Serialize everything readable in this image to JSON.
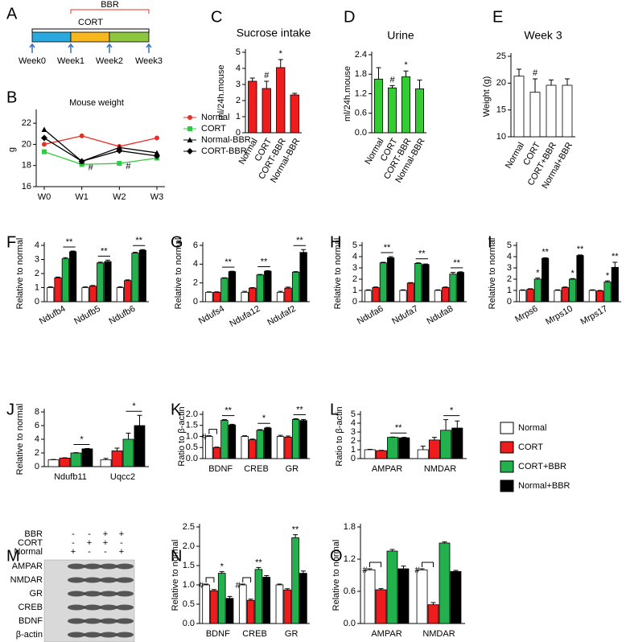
{
  "chart_data": [
    {
      "type": "timeline",
      "panel": "A",
      "weeks": [
        "Week0",
        "Week1",
        "Week2",
        "Week3"
      ],
      "segment_colors": [
        "#29a9e0",
        "#f7b81f",
        "#8dc63f"
      ],
      "brackets": [
        {
          "label": "BBR",
          "color": "#e8302a"
        },
        {
          "label": "CORT",
          "color": "#000000"
        }
      ]
    },
    {
      "type": "line",
      "panel": "B",
      "title": "Mouse weight",
      "ylabel": "g",
      "categories": [
        "W0",
        "W1",
        "W2",
        "W3"
      ],
      "ylim": [
        16,
        23
      ],
      "yticks": [
        16,
        18,
        20,
        22
      ],
      "series": [
        {
          "name": "Normal",
          "color": "#e8302a",
          "values": [
            20.0,
            20.8,
            19.8,
            20.6
          ]
        },
        {
          "name": "CORT",
          "color": "#2ecc40",
          "values": [
            19.3,
            18.1,
            18.2,
            18.7
          ],
          "sig": [
            null,
            "#",
            "#",
            null
          ]
        },
        {
          "name": "Normal-BBR",
          "color": "#000000",
          "values": [
            21.4,
            18.4,
            19.7,
            19.2
          ]
        },
        {
          "name": "CORT-BBR",
          "color": "#000000",
          "values": [
            20.6,
            18.4,
            19.4,
            18.9
          ]
        }
      ]
    },
    {
      "type": "bar",
      "panel": "C",
      "title": "Sucrose intake",
      "ylabel": "ml/24h.mouse",
      "categories": [
        "Normal",
        "CORT",
        "CORT-BBR",
        "Normal-BBR"
      ],
      "values": [
        3.2,
        2.75,
        4.05,
        2.35
      ],
      "errors": [
        0.2,
        0.45,
        0.5,
        0.1
      ],
      "sig": [
        null,
        "#",
        "*",
        null
      ],
      "color": "#ee1c1c",
      "ylim": [
        0,
        5
      ],
      "yticks": [
        0,
        1,
        2,
        3,
        4,
        5
      ]
    },
    {
      "type": "bar",
      "panel": "D",
      "title": "Urine",
      "ylabel": "ml/24h.mouse",
      "categories": [
        "Normal",
        "CORT",
        "CORT-BBR",
        "Normal-BBR"
      ],
      "values": [
        1.65,
        1.38,
        1.72,
        1.35
      ],
      "errors": [
        0.35,
        0.07,
        0.18,
        0.27
      ],
      "sig": [
        null,
        "#",
        "*",
        null
      ],
      "color": "#33cc33",
      "ylim": [
        0,
        2.4
      ],
      "yticks": [
        {
          "value": 0,
          "label": "0.0"
        },
        0.6,
        1.2,
        1.8,
        2.4
      ]
    },
    {
      "type": "bar",
      "panel": "E",
      "title": "Week 3",
      "ylabel": "Weight (g)",
      "categories": [
        "Normal",
        "CORT",
        "CORT+BBR",
        "Normal+BBR"
      ],
      "values": [
        21.3,
        18.3,
        19.6,
        19.6
      ],
      "errors": [
        1.3,
        2.5,
        1.0,
        1.2
      ],
      "sig": [
        null,
        "#",
        null,
        null
      ],
      "color": "#ffffff",
      "ylim": [
        10,
        25
      ],
      "yticks": [
        10,
        15,
        20,
        25
      ]
    },
    {
      "type": "bar",
      "panel": "F",
      "ylabel": "Relative to normal",
      "categories": [
        "Ndufb4",
        "Ndufb5",
        "Ndufb6"
      ],
      "ylim": [
        0,
        4
      ],
      "yticks": [
        0,
        1,
        2,
        3,
        4
      ],
      "group_sig": [
        "**",
        "**",
        "**"
      ],
      "sig_line": true,
      "series": [
        {
          "name": "Normal",
          "color": "#ffffff",
          "values": [
            1,
            1,
            1
          ],
          "errors": [
            0.05,
            0.05,
            0.05
          ]
        },
        {
          "name": "CORT",
          "color": "#ee1c1c",
          "values": [
            1.7,
            1.1,
            1.5
          ],
          "errors": [
            0.05,
            0.05,
            0.05
          ]
        },
        {
          "name": "CORT+BBR",
          "color": "#22b14c",
          "values": [
            3.05,
            2.75,
            3.45
          ],
          "errors": [
            0.08,
            0.06,
            0.06
          ]
        },
        {
          "name": "Normal+BBR",
          "color": "#000000",
          "values": [
            3.55,
            2.85,
            3.65
          ],
          "errors": [
            0.05,
            0.1,
            0.05
          ]
        }
      ]
    },
    {
      "type": "bar",
      "panel": "G",
      "ylabel": "Relative to normal",
      "categories": [
        "Ndufs4",
        "Ndufa12",
        "Ndufaf2"
      ],
      "ylim": [
        0,
        6
      ],
      "yticks": [
        0,
        2,
        4,
        6
      ],
      "group_sig": [
        "**",
        "**",
        "**"
      ],
      "sig_line": true,
      "series": [
        {
          "name": "Normal",
          "color": "#ffffff",
          "values": [
            1,
            1,
            1
          ],
          "errors": [
            0.05,
            0.1,
            0.1
          ]
        },
        {
          "name": "CORT",
          "color": "#ee1c1c",
          "values": [
            1.0,
            1.45,
            1.45
          ],
          "errors": [
            0.05,
            0.05,
            0.1
          ]
        },
        {
          "name": "CORT+BBR",
          "color": "#22b14c",
          "values": [
            2.5,
            2.85,
            3.15
          ],
          "errors": [
            0.05,
            0.05,
            0.05
          ]
        },
        {
          "name": "Normal+BBR",
          "color": "#000000",
          "values": [
            3.2,
            3.25,
            5.25
          ],
          "errors": [
            0.05,
            0.05,
            0.3
          ]
        }
      ]
    },
    {
      "type": "bar",
      "panel": "H",
      "ylabel": "Relative to normal",
      "categories": [
        "Ndufa6",
        "Ndufa7",
        "Ndufa8"
      ],
      "ylim": [
        0,
        5
      ],
      "yticks": [
        0,
        1,
        2,
        3,
        4,
        5
      ],
      "group_sig": [
        "**",
        "**",
        "**"
      ],
      "sig_line": true,
      "series": [
        {
          "name": "Normal",
          "color": "#ffffff",
          "values": [
            1,
            1,
            1
          ],
          "errors": [
            0.05,
            0.05,
            0.05
          ]
        },
        {
          "name": "CORT",
          "color": "#ee1c1c",
          "values": [
            1.25,
            1.65,
            1.25
          ],
          "errors": [
            0.05,
            0.05,
            0.05
          ]
        },
        {
          "name": "CORT+BBR",
          "color": "#22b14c",
          "values": [
            3.45,
            3.4,
            2.45
          ],
          "errors": [
            0.05,
            0.05,
            0.15
          ]
        },
        {
          "name": "Normal+BBR",
          "color": "#000000",
          "values": [
            3.9,
            3.3,
            2.6
          ],
          "errors": [
            0.1,
            0.05,
            0.05
          ]
        }
      ]
    },
    {
      "type": "bar",
      "panel": "I",
      "ylabel": "Relative to normal",
      "categories": [
        "Mrps6",
        "Mrps10",
        "Mrps17"
      ],
      "ylim": [
        0,
        5
      ],
      "yticks": [
        0,
        1,
        2,
        3,
        4,
        5
      ],
      "group_sig": [
        "**",
        "**",
        "**"
      ],
      "sig_line": false,
      "series": [
        {
          "name": "Normal",
          "color": "#ffffff",
          "values": [
            1,
            1,
            1
          ],
          "errors": [
            0.05,
            0.05,
            0.05
          ]
        },
        {
          "name": "CORT",
          "color": "#ee1c1c",
          "values": [
            1.1,
            1.25,
            0.95
          ],
          "errors": [
            0.05,
            0.05,
            0.05
          ]
        },
        {
          "name": "CORT+BBR",
          "color": "#22b14c",
          "values": [
            2.0,
            2.0,
            1.75
          ],
          "errors": [
            0.1,
            0.05,
            0.1
          ],
          "sig": [
            "*",
            "*",
            "*"
          ]
        },
        {
          "name": "Normal+BBR",
          "color": "#000000",
          "values": [
            3.85,
            4.1,
            3.05
          ],
          "errors": [
            0.05,
            0.05,
            0.45
          ]
        }
      ]
    },
    {
      "type": "bar",
      "panel": "J",
      "ylabel": "Relative to normal",
      "categories": [
        "Ndufb11",
        "Uqcc2"
      ],
      "ylim": [
        0,
        8
      ],
      "yticks": [
        0,
        2,
        4,
        6,
        8
      ],
      "group_sig": [
        "*",
        "*"
      ],
      "sig_line": true,
      "series": [
        {
          "name": "Normal",
          "color": "#ffffff",
          "values": [
            1,
            1
          ],
          "errors": [
            0.05,
            0.2
          ]
        },
        {
          "name": "CORT",
          "color": "#ee1c1c",
          "values": [
            1.25,
            2.3
          ],
          "errors": [
            0.05,
            0.4
          ]
        },
        {
          "name": "CORT+BBR",
          "color": "#22b14c",
          "values": [
            2.0,
            4.0
          ],
          "errors": [
            0.05,
            0.9
          ]
        },
        {
          "name": "Normal+BBR",
          "color": "#000000",
          "values": [
            2.6,
            6.0
          ],
          "errors": [
            0.05,
            1.5
          ]
        }
      ]
    },
    {
      "type": "bar",
      "panel": "K",
      "ylabel": "Ratio to β-actin",
      "categories": [
        "BDNF",
        "CREB",
        "GR"
      ],
      "ylim": [
        0,
        2
      ],
      "yticks": [
        {
          "value": 0,
          "label": "0.0"
        },
        0.5,
        {
          "value": 1,
          "label": "1.0"
        },
        1.5,
        {
          "value": 2,
          "label": "2.0"
        }
      ],
      "group_sig": [
        "**",
        "*",
        "**"
      ],
      "pair_sig": [
        "#",
        null,
        null
      ],
      "sig_line": true,
      "series": [
        {
          "name": "Normal",
          "color": "#ffffff",
          "values": [
            1,
            1,
            1
          ],
          "errors": [
            0.03,
            0.03,
            0.05
          ]
        },
        {
          "name": "CORT",
          "color": "#ee1c1c",
          "values": [
            0.5,
            0.85,
            0.97
          ],
          "errors": [
            0.02,
            0.03,
            0.05
          ]
        },
        {
          "name": "CORT+BBR",
          "color": "#22b14c",
          "values": [
            1.73,
            1.28,
            1.77
          ],
          "errors": [
            0.03,
            0.03,
            0.03
          ]
        },
        {
          "name": "Normal+BBR",
          "color": "#000000",
          "values": [
            1.52,
            1.38,
            1.72
          ],
          "errors": [
            0.03,
            0.03,
            0.05
          ]
        }
      ]
    },
    {
      "type": "bar",
      "panel": "L",
      "ylabel": "Ratio to β-actin",
      "categories": [
        "AMPAR",
        "NMDAR"
      ],
      "ylim": [
        0,
        5
      ],
      "yticks": [
        0,
        1,
        2,
        3,
        4,
        5
      ],
      "group_sig": [
        "**",
        "*"
      ],
      "sig_line": true,
      "legend": true,
      "series": [
        {
          "name": "Normal",
          "color": "#ffffff",
          "values": [
            1,
            1
          ],
          "errors": [
            0.05,
            0.4
          ]
        },
        {
          "name": "CORT",
          "color": "#ee1c1c",
          "values": [
            0.9,
            2.1
          ],
          "errors": [
            0.03,
            0.3
          ]
        },
        {
          "name": "CORT+BBR",
          "color": "#22b14c",
          "values": [
            2.4,
            3.2
          ],
          "errors": [
            0.03,
            1.2
          ]
        },
        {
          "name": "Normal+BBR",
          "color": "#000000",
          "values": [
            2.35,
            3.45
          ],
          "errors": [
            0.05,
            0.8
          ]
        }
      ]
    },
    {
      "type": "blot",
      "panel": "M",
      "conditions": [
        {
          "label": "BBR",
          "signs": [
            "-",
            "-",
            "+",
            "+"
          ]
        },
        {
          "label": "CORT",
          "signs": [
            "-",
            "+",
            "+",
            "-"
          ]
        },
        {
          "label": "Normal",
          "signs": [
            "+",
            "-",
            "-",
            "+"
          ]
        }
      ],
      "bands": [
        "AMPAR",
        "NMDAR",
        "GR",
        "CREB",
        "BDNF",
        "β-actin"
      ]
    },
    {
      "type": "bar",
      "panel": "N",
      "ylabel": "Relative to normal",
      "categories": [
        "BDNF",
        "CREB",
        "GR"
      ],
      "ylim": [
        0,
        2.5
      ],
      "yticks": [
        {
          "value": 0,
          "label": "0.0"
        },
        0.5,
        {
          "value": 1,
          "label": "1.0"
        },
        1.5,
        {
          "value": 2,
          "label": "2.0"
        },
        2.5
      ],
      "pair_sig": [
        "#",
        "#",
        null
      ],
      "series": [
        {
          "name": "Normal",
          "color": "#ffffff",
          "values": [
            1,
            1,
            1
          ],
          "errors": [
            0.02,
            0.02,
            0.02
          ]
        },
        {
          "name": "CORT",
          "color": "#ee1c1c",
          "values": [
            0.85,
            0.6,
            0.87
          ],
          "errors": [
            0.03,
            0.03,
            0.03
          ]
        },
        {
          "name": "CORT+BBR",
          "color": "#22b14c",
          "values": [
            1.3,
            1.4,
            2.22
          ],
          "errors": [
            0.04,
            0.05,
            0.08
          ],
          "sig": [
            "*",
            "**",
            "**"
          ]
        },
        {
          "name": "Normal+BBR",
          "color": "#000000",
          "values": [
            0.65,
            1.2,
            1.3
          ],
          "errors": [
            0.05,
            0.04,
            0.06
          ]
        }
      ]
    },
    {
      "type": "bar",
      "panel": "O",
      "ylabel": "Relative to normal",
      "categories": [
        "AMPAR",
        "NMDAR"
      ],
      "ylim": [
        0,
        1.8
      ],
      "yticks": [
        {
          "value": 0,
          "label": "0.0"
        },
        0.6,
        1.2,
        1.8
      ],
      "pair_sig": [
        "#",
        "#"
      ],
      "series": [
        {
          "name": "Normal",
          "color": "#ffffff",
          "values": [
            1,
            1
          ],
          "errors": [
            0.02,
            0.02
          ]
        },
        {
          "name": "CORT",
          "color": "#ee1c1c",
          "values": [
            0.63,
            0.35
          ],
          "errors": [
            0.02,
            0.04
          ]
        },
        {
          "name": "CORT+BBR",
          "color": "#22b14c",
          "values": [
            1.35,
            1.5
          ],
          "errors": [
            0.03,
            0.02
          ]
        },
        {
          "name": "Normal+BBR",
          "color": "#000000",
          "values": [
            1.02,
            0.97
          ],
          "errors": [
            0.05,
            0.02
          ]
        }
      ]
    }
  ]
}
